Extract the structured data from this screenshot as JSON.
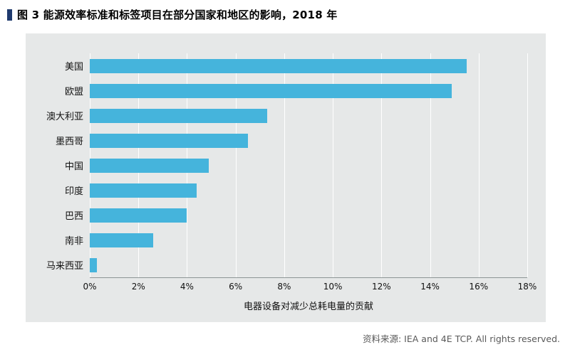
{
  "header": {
    "title": "图 3 能源效率标准和标签项目在部分国家和地区的影响，2018 年"
  },
  "footer": {
    "source": "资料来源: IEA and 4E TCP. All rights reserved."
  },
  "colors": {
    "accent_marker": "#1f3a6e",
    "bar": "#45b4dc",
    "panel_bg": "#e6e8e8",
    "gridline": "#ffffff",
    "axis_line": "#8c9494",
    "source_text": "#595959"
  },
  "chart_data": {
    "type": "bar",
    "orientation": "horizontal",
    "title": "图 3 能源效率标准和标签项目在部分国家和地区的影响，2018 年",
    "categories": [
      "美国",
      "欧盟",
      "澳大利亚",
      "墨西哥",
      "中国",
      "印度",
      "巴西",
      "南非",
      "马来西亚"
    ],
    "values": [
      15.5,
      14.9,
      7.3,
      6.5,
      4.9,
      4.4,
      4.0,
      2.6,
      0.3
    ],
    "unit": "%",
    "xlabel": "电器设备对减少总耗电量的贡献",
    "xlim": [
      0,
      18
    ],
    "tick_step": 2,
    "tick_labels": [
      "0%",
      "2%",
      "4%",
      "6%",
      "8%",
      "10%",
      "12%",
      "14%",
      "16%",
      "18%"
    ],
    "grid": true,
    "legend": "none"
  }
}
